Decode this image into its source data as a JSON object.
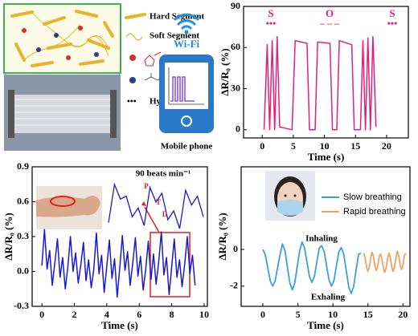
{
  "illustration": {
    "legend": [
      "Hard Segment",
      "Soft Segment",
      "Hydrogen bond"
    ]
  },
  "wireless": {
    "signal_label": "Wi-Fi",
    "device_label": "Mobile phone"
  },
  "chart_data": [
    {
      "type": "line",
      "x_label": "Time (s)",
      "y_label": "ΔR/R₀ (%)",
      "color": "#e0207a",
      "annotations": [
        "S",
        "O",
        "S"
      ],
      "morse": [
        "•••",
        "– – –",
        "•••"
      ],
      "x": [
        0.3,
        0.8,
        1.2,
        1.6,
        2.0,
        2.4,
        2.8,
        4.8,
        5.3,
        7.2,
        7.6,
        8.5,
        8.9,
        10.9,
        11.3,
        12.0,
        12.4,
        14.4,
        14.8,
        15.8,
        16.2,
        16.6,
        17.0,
        17.4,
        17.8,
        18.3
      ],
      "values": [
        0,
        62,
        0,
        65,
        0,
        68,
        2,
        0,
        65,
        63,
        0,
        0,
        64,
        63,
        0,
        0,
        65,
        62,
        0,
        0,
        65,
        0,
        67,
        0,
        68,
        2
      ],
      "xlim": [
        -3,
        23.5
      ],
      "ylim": [
        -6,
        90
      ],
      "xticks": [
        0,
        5,
        10,
        15,
        20
      ],
      "yticks": [
        0,
        30,
        60,
        90
      ]
    },
    {
      "type": "line",
      "x_label": "Time (s)",
      "y_label": "ΔR/R₀ (%)",
      "color": "#1a1ad0",
      "x": [
        0,
        0.16,
        0.32,
        0.48,
        0.64,
        0.8,
        0.96,
        1.12,
        1.28,
        1.44,
        1.6,
        1.76,
        1.92,
        2.08,
        2.24,
        2.4,
        2.56,
        2.72,
        2.88,
        3.04,
        3.2,
        3.36,
        3.52,
        3.68,
        3.84,
        4,
        4.16,
        4.32,
        4.48,
        4.64,
        4.8,
        4.96,
        5.12,
        5.28,
        5.44,
        5.6,
        5.76,
        5.92,
        6.08,
        6.24,
        6.4,
        6.56,
        6.72,
        6.88,
        7.04,
        7.2,
        7.36,
        7.52,
        7.68,
        7.84,
        8,
        8.16,
        8.32,
        8.48,
        8.64,
        8.8,
        8.96,
        9.12,
        9.28,
        9.44
      ],
      "values": [
        0.05,
        0.36,
        0.02,
        0.18,
        -0.12,
        0.08,
        0.28,
        -0.05,
        0.12,
        -0.15,
        0.04,
        0.3,
        0.0,
        0.16,
        -0.1,
        0.06,
        0.25,
        -0.08,
        0.1,
        -0.14,
        0.02,
        0.33,
        -0.02,
        0.14,
        -0.18,
        0.05,
        0.27,
        -0.06,
        0.11,
        -0.22,
        0.03,
        0.31,
        0.01,
        0.17,
        -0.12,
        0.07,
        0.29,
        -0.04,
        0.13,
        -0.16,
        0.02,
        0.26,
        -0.07,
        0.15,
        -0.11,
        0.08,
        0.34,
        -0.03,
        0.12,
        -0.2,
        0.04,
        0.28,
        -0.05,
        0.1,
        -0.13,
        0.06,
        0.3,
        -0.02,
        0.14,
        -0.12
      ],
      "xlim": [
        -0.6,
        10.2
      ],
      "ylim": [
        -0.3,
        0.9
      ],
      "xticks": [
        0,
        2,
        4,
        6,
        8,
        10
      ],
      "yticks": [
        -0.3,
        {
          "value": 0,
          "label": "0.0"
        },
        0.3,
        0.6,
        0.9
      ],
      "inset": {
        "title": "90 beats min⁻¹",
        "labels": [
          "P",
          "T",
          "D"
        ],
        "values": [
          0.1,
          0.75,
          0.5,
          0.55,
          0.2,
          0.35,
          0.05,
          0.7,
          0.45,
          0.6,
          0.15,
          0.3,
          0.0,
          0.65,
          0.4,
          0.55,
          0.2
        ]
      }
    },
    {
      "type": "line",
      "x_label": "Time (s)",
      "y_label": "ΔR/R₀ (%)",
      "annotations": [
        "Inhaling",
        "Exhaling"
      ],
      "series": [
        {
          "name": "Slow breathing",
          "color": "#3aa0e0",
          "x": [
            0,
            0.35,
            0.7,
            1.05,
            1.4,
            1.75,
            2.1,
            2.45,
            2.8,
            3.15,
            3.5,
            3.85,
            4.2,
            4.55,
            4.9,
            5.25,
            5.6,
            5.95,
            6.3,
            6.65,
            7,
            7.35,
            7.7,
            8.05,
            8.4,
            8.75,
            9.1,
            9.45,
            9.8,
            10.15,
            10.5,
            10.85,
            11.2,
            11.55,
            11.9,
            12.25,
            12.6,
            12.95,
            13.3,
            13.65,
            14
          ],
          "values": [
            0,
            -0.29,
            -1,
            -1.71,
            -2,
            -1.71,
            -1,
            -0.29,
            0.3,
            -0.07,
            -0.95,
            -1.83,
            -2.2,
            -1.83,
            -0.95,
            -0.07,
            0.4,
            0.08,
            -0.7,
            -1.48,
            -1.8,
            -1.48,
            -0.7,
            0.08,
            0.2,
            -0.12,
            -0.9,
            -1.68,
            -2.0,
            -1.68,
            -0.9,
            -0.12,
            0.1,
            -0.27,
            -1.15,
            -2.03,
            -2.4,
            -2.03,
            -1.15,
            -0.27,
            -0.2
          ]
        },
        {
          "name": "Rapid breathing",
          "color": "#f0a060",
          "x": [
            14.4,
            14.6,
            14.8,
            15,
            15.2,
            15.4,
            15.6,
            15.8,
            16,
            16.2,
            16.4,
            16.6,
            16.8,
            17,
            17.2,
            17.4,
            17.6,
            17.8,
            18,
            18.2,
            18.4,
            18.6,
            18.8,
            19,
            19.2,
            19.4,
            19.6,
            19.8,
            20,
            20.2,
            20.4
          ],
          "values": [
            -0.2,
            -0.45,
            -0.95,
            -1.2,
            -0.95,
            -0.45,
            -0.15,
            -0.4,
            -0.9,
            -1.15,
            -0.9,
            -0.4,
            -0.25,
            -0.5,
            -1.0,
            -1.25,
            -1.0,
            -0.5,
            -0.2,
            -0.45,
            -0.95,
            -1.2,
            -0.95,
            -0.45,
            -0.1,
            -0.35,
            -0.85,
            -1.1,
            -0.85,
            -0.35,
            -0.2
          ]
        }
      ],
      "xlim": [
        -3.1,
        21
      ],
      "ylim": [
        -3.1,
        4.5
      ],
      "xticks": [
        0,
        5,
        10,
        15,
        20
      ],
      "yticks": [
        -2,
        0
      ]
    }
  ]
}
